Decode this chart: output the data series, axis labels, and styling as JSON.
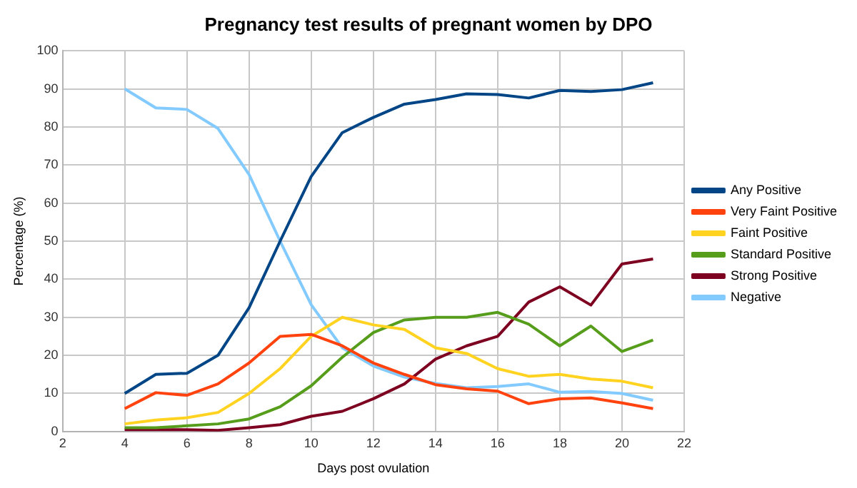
{
  "chart_data": {
    "type": "line",
    "title": "Pregnancy test results of pregnant women by DPO",
    "xlabel": "Days post ovulation",
    "ylabel": "Percentage (%)",
    "x": [
      4,
      5,
      6,
      7,
      8,
      9,
      10,
      11,
      12,
      13,
      14,
      15,
      16,
      17,
      18,
      19,
      20,
      21
    ],
    "series": [
      {
        "name": "Any Positive",
        "color": "#004586",
        "values": [
          10,
          15,
          15.3,
          20,
          32.5,
          50,
          67,
          78.5,
          82.5,
          86,
          87.2,
          88.7,
          88.5,
          87.6,
          89.6,
          89.3,
          89.8,
          91.6
        ]
      },
      {
        "name": "Very Faint Positive",
        "color": "#ff420e",
        "values": [
          6,
          10.2,
          9.5,
          12.5,
          18,
          25,
          25.5,
          22.5,
          18,
          15,
          12.3,
          11.2,
          10.6,
          7.3,
          8.6,
          8.8,
          7.5,
          6
        ]
      },
      {
        "name": "Faint Positive",
        "color": "#ffd320",
        "values": [
          2,
          3,
          3.6,
          5,
          10,
          16.5,
          25,
          30,
          28,
          26.8,
          22,
          20.5,
          16.5,
          14.5,
          15,
          13.8,
          13.2,
          11.5
        ]
      },
      {
        "name": "Standard Positive",
        "color": "#579d1c",
        "values": [
          1,
          1,
          1.5,
          2,
          3.3,
          6.5,
          12,
          19.5,
          26,
          29.3,
          30,
          30,
          31.3,
          28.2,
          22.5,
          27.7,
          21,
          24
        ]
      },
      {
        "name": "Strong Positive",
        "color": "#7e0021",
        "values": [
          0.5,
          0.5,
          0.5,
          0.3,
          1,
          1.8,
          4,
          5.3,
          8.6,
          12.5,
          19,
          22.5,
          25,
          34,
          38,
          33.2,
          44,
          45.3
        ]
      },
      {
        "name": "Negative",
        "color": "#83caff",
        "values": [
          90,
          85,
          84.6,
          79.6,
          67.5,
          50,
          33.3,
          22,
          17.2,
          14.3,
          12.6,
          11.5,
          11.8,
          12.5,
          10.3,
          10.5,
          10,
          8.2
        ]
      }
    ],
    "xlim": [
      2,
      22
    ],
    "xticks": [
      2,
      4,
      6,
      8,
      10,
      12,
      14,
      16,
      18,
      20,
      22
    ],
    "ylim": [
      0,
      100
    ],
    "yticks": [
      0,
      10,
      20,
      30,
      40,
      50,
      60,
      70,
      80,
      90,
      100
    ],
    "grid": true,
    "legend": "right",
    "marker": "none",
    "line_style": "solid"
  }
}
